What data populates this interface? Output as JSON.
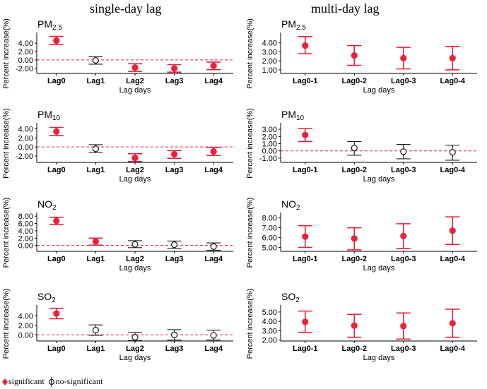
{
  "titles": {
    "left": "single-day lag",
    "right": "multi-day lag"
  },
  "legend": {
    "significant": "significant",
    "nonsignificant": "no-significant"
  },
  "colors": {
    "significant": "#e8213c",
    "nonsignificant": "#1a1a1a",
    "refline": "#e8213c",
    "axis": "#000000"
  },
  "chart_data": [
    {
      "type": "scatter",
      "name": "pm25-single",
      "pollutant": "PM",
      "subscript": "2.5",
      "ylabel": "Percent increase(%)",
      "xlabel": "Lag days",
      "ylim": [
        -3.2,
        6.2
      ],
      "yticks": [
        -2.0,
        0.0,
        2.0,
        4.0
      ],
      "yticklabels": [
        "-2.00",
        "0.00",
        "2.00",
        "4.00"
      ],
      "categories": [
        "Lag0",
        "Lag1",
        "Lag2",
        "Lag3",
        "Lag4"
      ],
      "points": [
        {
          "est": 4.6,
          "lo": 3.7,
          "hi": 5.6,
          "sig": true
        },
        {
          "est": -0.1,
          "lo": -1.0,
          "hi": 0.8,
          "sig": false
        },
        {
          "est": -1.8,
          "lo": -2.7,
          "hi": -0.9,
          "sig": true
        },
        {
          "est": -2.0,
          "lo": -2.9,
          "hi": -1.1,
          "sig": true
        },
        {
          "est": -1.4,
          "lo": -2.3,
          "hi": -0.5,
          "sig": true
        }
      ]
    },
    {
      "type": "scatter",
      "name": "pm25-multi",
      "pollutant": "PM",
      "subscript": "2.5",
      "ylabel": "Percent increase(%)",
      "xlabel": "Lag days",
      "ylim": [
        0.6,
        5.0
      ],
      "yticks": [
        1.0,
        2.0,
        3.0,
        4.0
      ],
      "yticklabels": [
        "1.00",
        "2.00",
        "3.00",
        "4.00"
      ],
      "categories": [
        "Lag0-1",
        "Lag0-2",
        "Lag0-3",
        "Lag0-4"
      ],
      "points": [
        {
          "est": 3.7,
          "lo": 2.8,
          "hi": 4.7,
          "sig": true
        },
        {
          "est": 2.6,
          "lo": 1.5,
          "hi": 3.7,
          "sig": true
        },
        {
          "est": 2.3,
          "lo": 1.1,
          "hi": 3.5,
          "sig": true
        },
        {
          "est": 2.3,
          "lo": 1.0,
          "hi": 3.6,
          "sig": true
        }
      ]
    },
    {
      "type": "scatter",
      "name": "pm10-single",
      "pollutant": "PM",
      "subscript": "10",
      "ylabel": "Percent increase(%)",
      "xlabel": "Lag days",
      "ylim": [
        -3.4,
        5.0
      ],
      "yticks": [
        -2.0,
        0.0,
        2.0,
        4.0
      ],
      "yticklabels": [
        "-2.00",
        "0.00",
        "2.00",
        "4.00"
      ],
      "categories": [
        "Lag0",
        "Lag1",
        "Lag2",
        "Lag3",
        "Lag4"
      ],
      "points": [
        {
          "est": 3.4,
          "lo": 2.5,
          "hi": 4.3,
          "sig": true
        },
        {
          "est": -0.4,
          "lo": -1.3,
          "hi": 0.5,
          "sig": false
        },
        {
          "est": -2.4,
          "lo": -3.2,
          "hi": -1.5,
          "sig": true
        },
        {
          "est": -1.6,
          "lo": -2.5,
          "hi": -0.8,
          "sig": true
        },
        {
          "est": -1.0,
          "lo": -1.9,
          "hi": -0.1,
          "sig": true
        }
      ]
    },
    {
      "type": "scatter",
      "name": "pm10-multi",
      "pollutant": "PM",
      "subscript": "10",
      "ylabel": "Percent increase(%)",
      "xlabel": "Lag days",
      "ylim": [
        -1.6,
        3.7
      ],
      "yticks": [
        -1.0,
        0.0,
        1.0,
        2.0,
        3.0
      ],
      "yticklabels": [
        "-1.00",
        "0.00",
        "1.00",
        "2.00",
        "3.00"
      ],
      "categories": [
        "Lag0-1",
        "Lag0-2",
        "Lag0-3",
        "Lag0-4"
      ],
      "points": [
        {
          "est": 2.2,
          "lo": 1.3,
          "hi": 3.1,
          "sig": true
        },
        {
          "est": 0.4,
          "lo": -0.6,
          "hi": 1.3,
          "sig": false
        },
        {
          "est": -0.1,
          "lo": -1.1,
          "hi": 0.9,
          "sig": false
        },
        {
          "est": -0.2,
          "lo": -1.3,
          "hi": 0.8,
          "sig": false
        }
      ]
    },
    {
      "type": "scatter",
      "name": "no2-single",
      "pollutant": "NO",
      "subscript": "2",
      "ylabel": "Percent increase(%)",
      "xlabel": "Lag days",
      "ylim": [
        -1.6,
        8.6
      ],
      "yticks": [
        0.0,
        2.0,
        4.0,
        6.0,
        8.0
      ],
      "yticklabels": [
        "0.00",
        "2.00",
        "4.00",
        "6.00",
        "8.00"
      ],
      "categories": [
        "Lag0",
        "Lag1",
        "Lag2",
        "Lag3",
        "Lag4"
      ],
      "points": [
        {
          "est": 6.7,
          "lo": 5.7,
          "hi": 7.7,
          "sig": true
        },
        {
          "est": 1.1,
          "lo": 0.1,
          "hi": 2.0,
          "sig": true
        },
        {
          "est": 0.3,
          "lo": -0.6,
          "hi": 1.3,
          "sig": false
        },
        {
          "est": 0.2,
          "lo": -0.8,
          "hi": 1.2,
          "sig": false
        },
        {
          "est": -0.3,
          "lo": -1.3,
          "hi": 0.7,
          "sig": false
        }
      ]
    },
    {
      "type": "scatter",
      "name": "no2-multi",
      "pollutant": "NO",
      "subscript": "2",
      "ylabel": "Percent increase(%)",
      "xlabel": "Lag days",
      "ylim": [
        4.6,
        8.4
      ],
      "yticks": [
        5.0,
        6.0,
        7.0,
        8.0
      ],
      "yticklabels": [
        "5.00",
        "6.00",
        "7.00",
        "8.00"
      ],
      "categories": [
        "Lag0-1",
        "Lag0-2",
        "Lag0-3",
        "Lag0-4"
      ],
      "points": [
        {
          "est": 6.1,
          "lo": 5.0,
          "hi": 7.2,
          "sig": true
        },
        {
          "est": 5.9,
          "lo": 4.75,
          "hi": 7.0,
          "sig": true
        },
        {
          "est": 6.15,
          "lo": 4.9,
          "hi": 7.4,
          "sig": true
        },
        {
          "est": 6.7,
          "lo": 5.3,
          "hi": 8.1,
          "sig": true
        }
      ]
    },
    {
      "type": "scatter",
      "name": "so2-single",
      "pollutant": "SO",
      "subscript": "2",
      "ylabel": "Percent increase(%)",
      "xlabel": "Lag days",
      "ylim": [
        -1.3,
        6.0
      ],
      "yticks": [
        0.0,
        2.0,
        4.0
      ],
      "yticklabels": [
        "0.00",
        "2.00",
        "4.00"
      ],
      "categories": [
        "Lag0",
        "Lag1",
        "Lag2",
        "Lag3",
        "Lag4"
      ],
      "points": [
        {
          "est": 4.5,
          "lo": 3.4,
          "hi": 5.6,
          "sig": true
        },
        {
          "est": 1.0,
          "lo": -0.1,
          "hi": 2.1,
          "sig": false
        },
        {
          "est": -0.5,
          "lo": -1.2,
          "hi": 0.5,
          "sig": false
        },
        {
          "est": 0.0,
          "lo": -1.1,
          "hi": 1.1,
          "sig": false
        },
        {
          "est": -0.1,
          "lo": -1.1,
          "hi": 1.0,
          "sig": false
        }
      ]
    },
    {
      "type": "scatter",
      "name": "so2-multi",
      "pollutant": "SO",
      "subscript": "2",
      "ylabel": "Percent increase(%)",
      "xlabel": "Lag days",
      "ylim": [
        1.9,
        5.6
      ],
      "yticks": [
        2.0,
        3.0,
        4.0,
        5.0
      ],
      "yticklabels": [
        "2.00",
        "3.00",
        "4.00",
        "5.00"
      ],
      "categories": [
        "Lag0-1",
        "Lag0-2",
        "Lag0-3",
        "Lag0-4"
      ],
      "points": [
        {
          "est": 3.95,
          "lo": 2.8,
          "hi": 5.1,
          "sig": true
        },
        {
          "est": 3.55,
          "lo": 2.3,
          "hi": 4.75,
          "sig": true
        },
        {
          "est": 3.5,
          "lo": 2.1,
          "hi": 4.9,
          "sig": true
        },
        {
          "est": 3.8,
          "lo": 2.3,
          "hi": 5.3,
          "sig": true
        }
      ]
    }
  ]
}
